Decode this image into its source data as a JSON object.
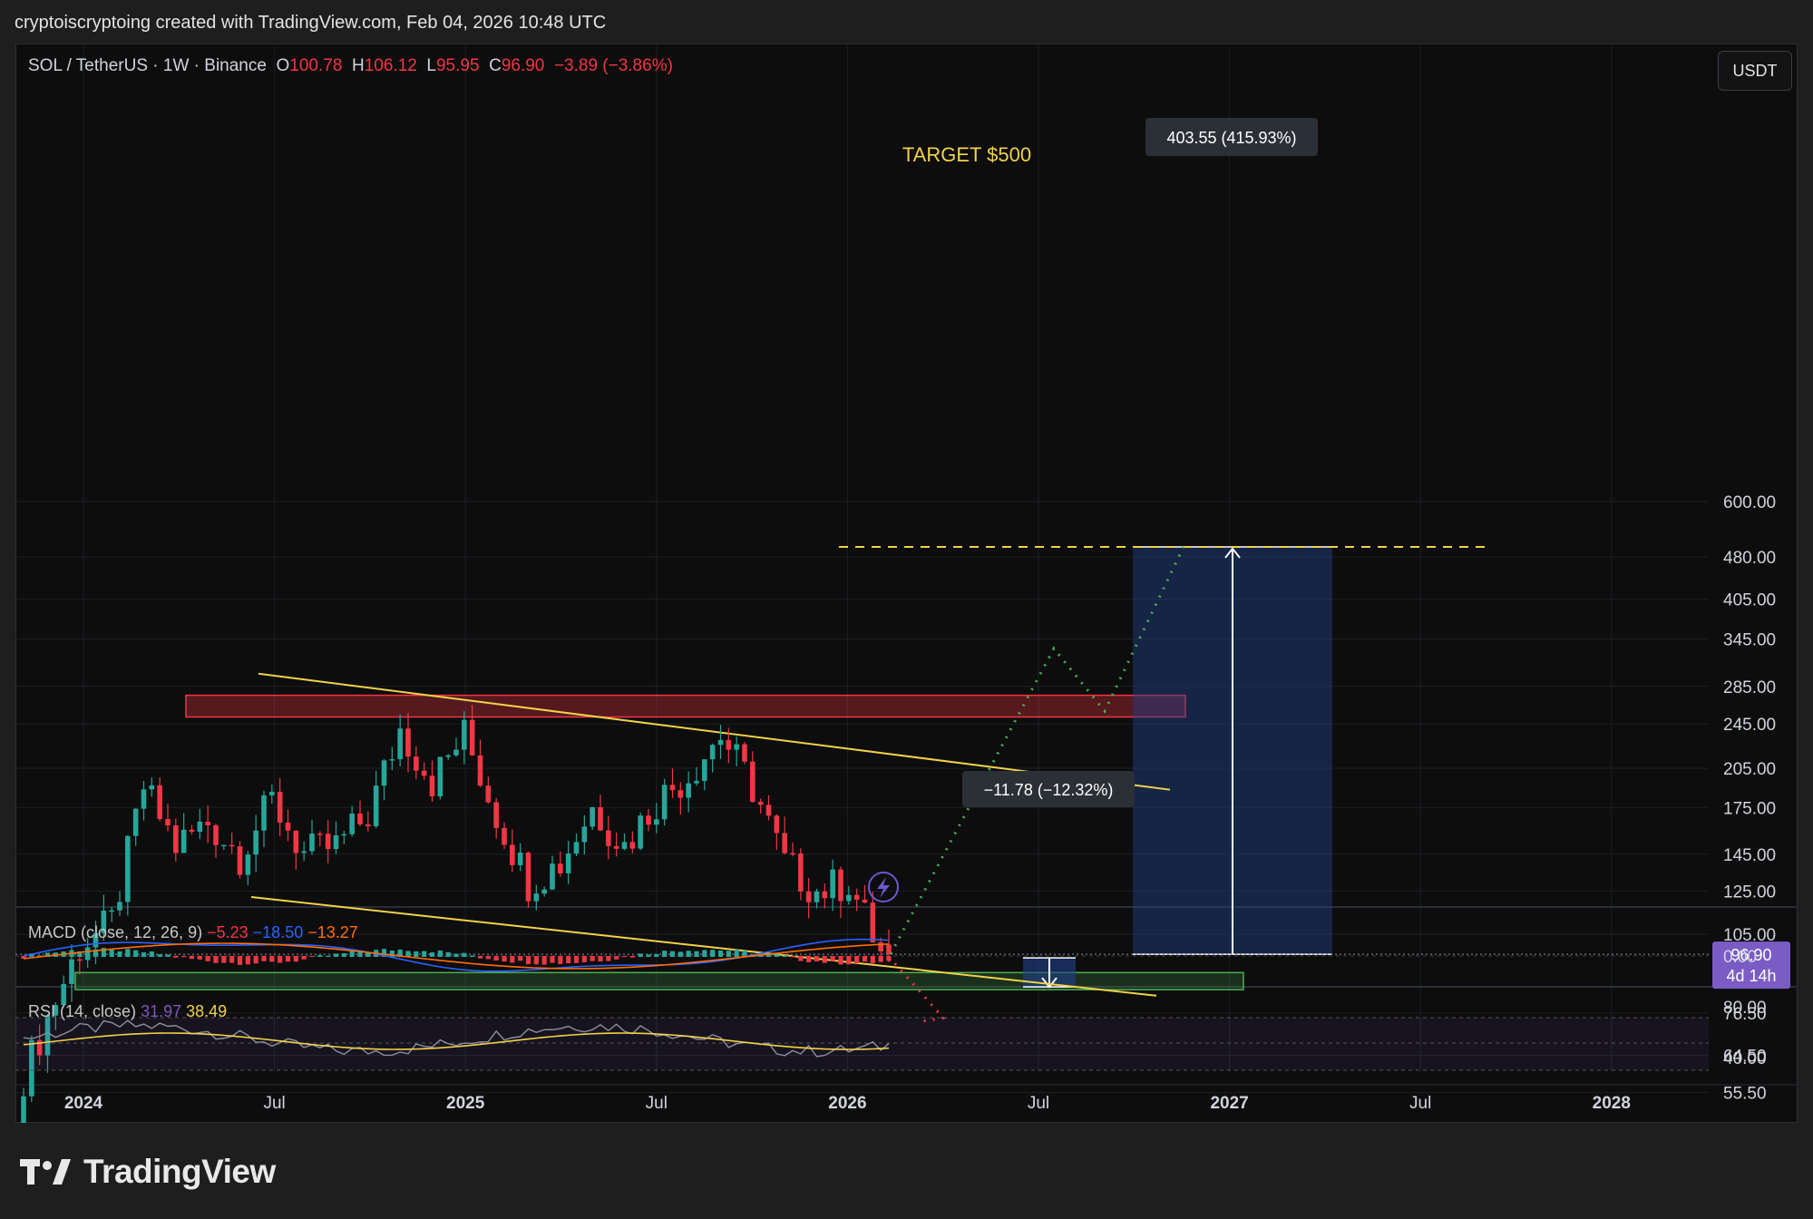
{
  "header": {
    "text": "cryptoiscryptoing created with TradingView.com, Feb 04, 2026 10:48 UTC"
  },
  "legend": {
    "symbol": "SOL / TetherUS · 1W · Binance",
    "o_label": "O",
    "o": "100.78",
    "h_label": "H",
    "h": "106.12",
    "l_label": "L",
    "l": "95.95",
    "c_label": "C",
    "c": "96.90",
    "change": "−3.89 (−3.86%)"
  },
  "currency_button": "USDT",
  "price_axis": [
    "600.00",
    "480.00",
    "405.00",
    "345.00",
    "285.00",
    "245.00",
    "205.00",
    "175.00",
    "145.00",
    "125.00",
    "105.00",
    "76.50",
    "64.50",
    "55.50"
  ],
  "current_price": {
    "price": "96.90",
    "countdown": "4d 14h"
  },
  "time_axis": [
    "2024",
    "Jul",
    "2025",
    "Jul",
    "2026",
    "Jul",
    "2027",
    "Jul",
    "2028"
  ],
  "annotations": {
    "target": "TARGET $500",
    "long_measure": "403.55 (415.93%)",
    "short_measure": "−11.78 (−12.32%)"
  },
  "macd": {
    "label": "MACD (close, 12, 26, 9)",
    "v1": "−5.23",
    "v2": "−18.50",
    "v3": "−13.27",
    "axis": "0.00"
  },
  "rsi": {
    "label": "RSI (14, close)",
    "v1": "31.97",
    "v2": "38.49",
    "axis_top": "80.00",
    "axis_bottom": "40.00"
  },
  "brand": "TradingView",
  "colors": {
    "up": "#26a69a",
    "down": "#f23645",
    "trendline": "#f0d24a",
    "projection": "#4caf50",
    "price_tag": "#7b5cc4"
  },
  "chart_data": {
    "type": "candlestick",
    "title": "SOL / TetherUS · 1W · Binance",
    "scale": "log",
    "ylim": [
      51,
      650
    ],
    "x": [
      "2023-11",
      "2023-12",
      "2024-01",
      "2024-02",
      "2024-03",
      "2024-04",
      "2024-05",
      "2024-06",
      "2024-07",
      "2024-08",
      "2024-09",
      "2024-10",
      "2024-11",
      "2024-12",
      "2025-01",
      "2025-02",
      "2025-03",
      "2025-04",
      "2025-05",
      "2025-06",
      "2025-07",
      "2025-08",
      "2025-09",
      "2025-10",
      "2025-11",
      "2025-12",
      "2026-01",
      "2026-02"
    ],
    "close": [
      55,
      75,
      100,
      110,
      190,
      150,
      165,
      145,
      180,
      145,
      150,
      170,
      240,
      195,
      235,
      170,
      130,
      140,
      175,
      150,
      180,
      200,
      235,
      190,
      140,
      125,
      130,
      96.9
    ],
    "zones": {
      "resistance": [
        252,
        275
      ],
      "support": [
        84,
        90
      ]
    },
    "target": 500,
    "current": 96.9
  }
}
